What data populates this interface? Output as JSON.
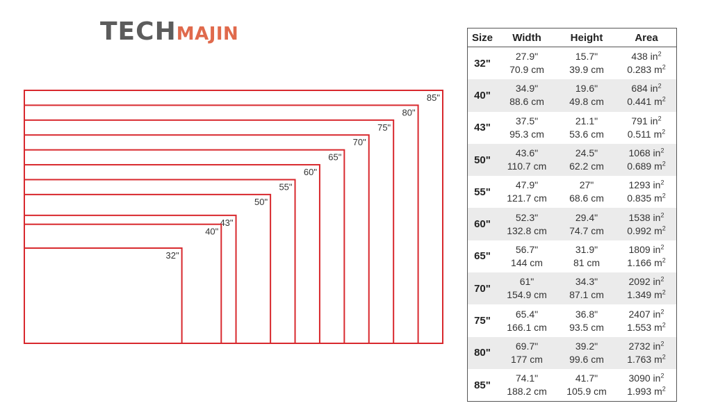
{
  "brand": {
    "part1": "TECH",
    "part2": "MAJIN"
  },
  "diagram": {
    "colors": {
      "outline": "#d8282d",
      "label": "#333333"
    },
    "screens": [
      {
        "label": "32\"",
        "size": 32
      },
      {
        "label": "40\"",
        "size": 40
      },
      {
        "label": "43\"",
        "size": 43
      },
      {
        "label": "50\"",
        "size": 50
      },
      {
        "label": "55\"",
        "size": 55
      },
      {
        "label": "60\"",
        "size": 60
      },
      {
        "label": "65\"",
        "size": 65
      },
      {
        "label": "70\"",
        "size": 70
      },
      {
        "label": "75\"",
        "size": 75
      },
      {
        "label": "80\"",
        "size": 80
      },
      {
        "label": "85\"",
        "size": 85
      }
    ]
  },
  "table": {
    "headers": {
      "size": "Size",
      "width": "Width",
      "height": "Height",
      "area": "Area"
    },
    "area_unit_sup": "2",
    "rows": [
      {
        "size": "32\"",
        "width_in": "27.9\"",
        "width_cm": "70.9 cm",
        "height_in": "15.7\"",
        "height_cm": "39.9 cm",
        "area_in": "438 in",
        "area_m": "0.283 m"
      },
      {
        "size": "40\"",
        "width_in": "34.9\"",
        "width_cm": "88.6 cm",
        "height_in": "19.6\"",
        "height_cm": "49.8 cm",
        "area_in": "684 in",
        "area_m": "0.441 m"
      },
      {
        "size": "43\"",
        "width_in": "37.5\"",
        "width_cm": "95.3 cm",
        "height_in": "21.1\"",
        "height_cm": "53.6 cm",
        "area_in": "791 in",
        "area_m": "0.511 m"
      },
      {
        "size": "50\"",
        "width_in": "43.6\"",
        "width_cm": "110.7 cm",
        "height_in": "24.5\"",
        "height_cm": "62.2 cm",
        "area_in": "1068 in",
        "area_m": "0.689 m"
      },
      {
        "size": "55\"",
        "width_in": "47.9\"",
        "width_cm": "121.7 cm",
        "height_in": "27\"",
        "height_cm": "68.6 cm",
        "area_in": "1293 in",
        "area_m": "0.835 m"
      },
      {
        "size": "60\"",
        "width_in": "52.3\"",
        "width_cm": "132.8 cm",
        "height_in": "29.4\"",
        "height_cm": "74.7 cm",
        "area_in": "1538 in",
        "area_m": "0.992 m"
      },
      {
        "size": "65\"",
        "width_in": "56.7\"",
        "width_cm": "144 cm",
        "height_in": "31.9\"",
        "height_cm": "81 cm",
        "area_in": "1809 in",
        "area_m": "1.166 m"
      },
      {
        "size": "70\"",
        "width_in": "61\"",
        "width_cm": "154.9 cm",
        "height_in": "34.3\"",
        "height_cm": "87.1 cm",
        "area_in": "2092 in",
        "area_m": "1.349 m"
      },
      {
        "size": "75\"",
        "width_in": "65.4\"",
        "width_cm": "166.1 cm",
        "height_in": "36.8\"",
        "height_cm": "93.5 cm",
        "area_in": "2407 in",
        "area_m": "1.553 m"
      },
      {
        "size": "80\"",
        "width_in": "69.7\"",
        "width_cm": "177 cm",
        "height_in": "39.2\"",
        "height_cm": "99.6 cm",
        "area_in": "2732 in",
        "area_m": "1.763 m"
      },
      {
        "size": "85\"",
        "width_in": "74.1\"",
        "width_cm": "188.2 cm",
        "height_in": "41.7\"",
        "height_cm": "105.9 cm",
        "area_in": "3090 in",
        "area_m": "1.993 m"
      }
    ]
  }
}
